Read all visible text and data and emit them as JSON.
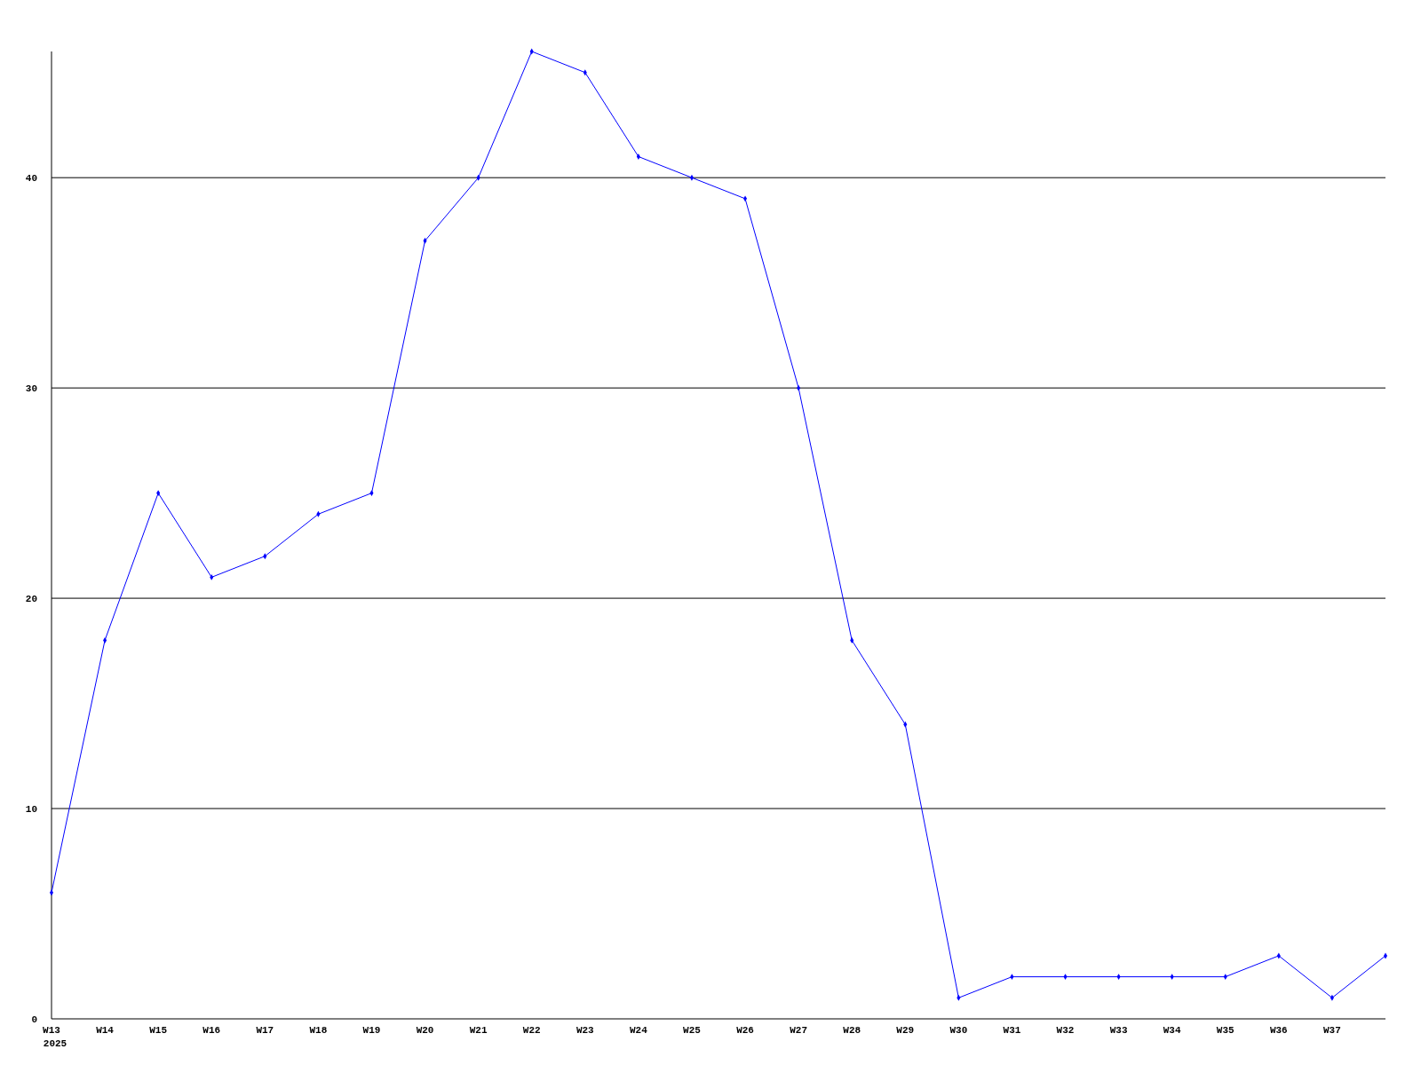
{
  "chart_data": {
    "type": "line",
    "categories": [
      "W13",
      "W14",
      "W15",
      "W16",
      "W17",
      "W18",
      "W19",
      "W20",
      "W21",
      "W22",
      "W23",
      "W24",
      "W25",
      "W26",
      "W27",
      "W28",
      "W29",
      "W30",
      "W31",
      "W32",
      "W33",
      "W34",
      "W35",
      "W36",
      "W37",
      null
    ],
    "series": [
      {
        "color": "#0000ff",
        "values": [
          6,
          18,
          25,
          21,
          22,
          24,
          25,
          37,
          40,
          46,
          45,
          41,
          40,
          39,
          30,
          18,
          14,
          1,
          2,
          2,
          2,
          2,
          2,
          3,
          1,
          3
        ]
      }
    ],
    "ylim": [
      0,
      46
    ],
    "yticks": [
      0,
      10,
      20,
      30,
      40
    ],
    "grid": "y",
    "marker": "diamond",
    "line_style": "solid",
    "annotations": [
      "2025"
    ]
  }
}
